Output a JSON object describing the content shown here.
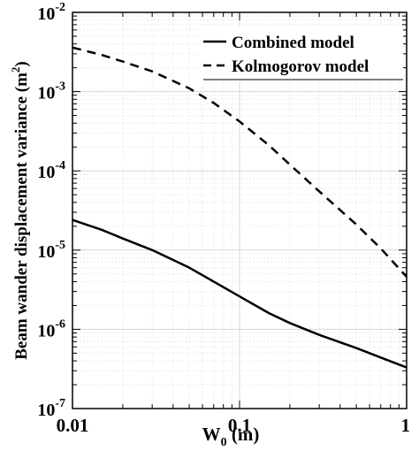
{
  "chart_data": {
    "type": "line",
    "xlabel": {
      "main": "W",
      "sub": "0",
      "suffix": " (m)"
    },
    "ylabel": {
      "prefix": "Beam wander displacement variance (m",
      "sup": "2",
      "suffix": ")"
    },
    "x_scale": "log",
    "y_scale": "log",
    "xlim": [
      0.01,
      1
    ],
    "ylim": [
      1e-07,
      0.01
    ],
    "grid": true,
    "legend_position": "top-right",
    "x_ticks": [
      {
        "value": 0.01,
        "label": "0.01"
      },
      {
        "value": 0.1,
        "label": "0.1"
      },
      {
        "value": 1,
        "label": "1"
      }
    ],
    "y_ticks": [
      {
        "value": 1e-07,
        "base": "10",
        "exp": "-7"
      },
      {
        "value": 1e-06,
        "base": "10",
        "exp": "-6"
      },
      {
        "value": 1e-05,
        "base": "10",
        "exp": "-5"
      },
      {
        "value": 0.0001,
        "base": "10",
        "exp": "-4"
      },
      {
        "value": 0.001,
        "base": "10",
        "exp": "-3"
      },
      {
        "value": 0.01,
        "base": "10",
        "exp": "-2"
      }
    ],
    "series": [
      {
        "name": "Combined model",
        "style": "solid",
        "color": "#000000",
        "x": [
          0.01,
          0.015,
          0.02,
          0.03,
          0.05,
          0.07,
          0.1,
          0.15,
          0.2,
          0.3,
          0.5,
          0.7,
          1.0
        ],
        "y": [
          2.4e-05,
          1.8e-05,
          1.4e-05,
          1e-05,
          6e-06,
          4e-06,
          2.6e-06,
          1.6e-06,
          1.2e-06,
          8.5e-07,
          5.8e-07,
          4.4e-07,
          3.3e-07
        ]
      },
      {
        "name": "Kolmogorov model",
        "style": "dashed",
        "color": "#000000",
        "x": [
          0.01,
          0.015,
          0.02,
          0.03,
          0.05,
          0.07,
          0.1,
          0.15,
          0.2,
          0.3,
          0.5,
          0.7,
          1.0
        ],
        "y": [
          0.0036,
          0.0029,
          0.0024,
          0.0018,
          0.0011,
          0.00072,
          0.00042,
          0.00021,
          0.00012,
          5.5e-05,
          2.1e-05,
          1.05e-05,
          4.6e-06
        ]
      }
    ]
  }
}
